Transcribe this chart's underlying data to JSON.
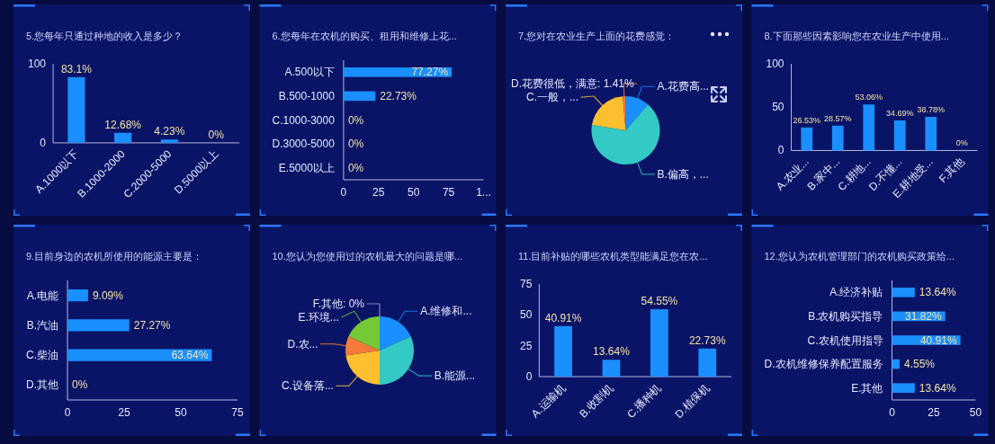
{
  "chart_data": [
    {
      "type": "bar",
      "title": "5.您每年只通过种地的收入是多少？",
      "categories": [
        "A.1000以下",
        "B.1000-2000",
        "C.2000-5000",
        "D.5000以上"
      ],
      "values": [
        83.1,
        12.68,
        4.23,
        0
      ],
      "value_labels": [
        "83.1%",
        "12.68%",
        "4.23%",
        "0%"
      ],
      "color": "#1a8fff",
      "ylim": [
        0,
        100
      ],
      "yticks": [
        0,
        100
      ]
    },
    {
      "type": "bar",
      "orientation": "horizontal",
      "title": "6.您每年在农机的购买、租用和维修上花...",
      "categories": [
        "A.500以下",
        "B.500-1000",
        "C.1000-3000",
        "D.3000-5000",
        "E.5000以上"
      ],
      "values": [
        77.27,
        22.73,
        0,
        0,
        0
      ],
      "value_labels": [
        "77.27%",
        "22.73%",
        "0%",
        "0%",
        "0%"
      ],
      "color": "#1a8fff",
      "xlim": [
        0,
        100
      ],
      "xticks": [
        0,
        25,
        50,
        75,
        {
          "value": 100,
          "label": "1..."
        }
      ]
    },
    {
      "type": "pie",
      "title": "7.您对在农业生产上面的花费感觉：",
      "categories": [
        "A.花费高...",
        "B.偏高，...",
        "C.一般，...",
        "D.花费很低，满意"
      ],
      "values": [
        11.3,
        66.2,
        21.09,
        1.41
      ],
      "value_labels": [
        null,
        null,
        null,
        "1.41%"
      ],
      "colors": [
        "#1a8fff",
        "#33c9c4",
        "#fbbf2f",
        "#f47b3a"
      ]
    },
    {
      "type": "bar",
      "title": "8.下面那些因素影响您在农业生产中使用...",
      "categories": [
        "A.农业...",
        "B.家中...",
        "C.耕地...",
        "D.不懂...",
        "E.耕地受...",
        "F.其他"
      ],
      "values": [
        26.53,
        28.57,
        53.06,
        34.69,
        38.78,
        0
      ],
      "value_labels": [
        "26.53%",
        "28.57%",
        "53.06%",
        "34.69%",
        "38.78%",
        "0%"
      ],
      "color": "#1a8fff",
      "ylim": [
        0,
        100
      ],
      "yticks": [
        0,
        50,
        100
      ]
    },
    {
      "type": "bar",
      "orientation": "horizontal",
      "title": "9.目前身边的农机所使用的能源主要是：",
      "categories": [
        "A.电能",
        "B.汽油",
        "C.柴油",
        "D.其他"
      ],
      "values": [
        9.09,
        27.27,
        63.64,
        0
      ],
      "value_labels": [
        "9.09%",
        "27.27%",
        "63.64%",
        "0%"
      ],
      "color": "#1a8fff",
      "xlim": [
        0,
        75
      ],
      "xticks": [
        0,
        25,
        50,
        75
      ]
    },
    {
      "type": "pie",
      "title": "10.您认为您使用过的农机最大的问题是哪...",
      "categories": [
        "A.维修和...",
        "B.能源...",
        "C.设备落...",
        "D.农...",
        "E.环境...",
        "F.其他"
      ],
      "values": [
        18.2,
        31.8,
        22.7,
        9.1,
        18.2,
        0
      ],
      "value_labels": [
        null,
        null,
        null,
        null,
        null,
        "0%"
      ],
      "colors": [
        "#1a8fff",
        "#33c9c4",
        "#fbbf2f",
        "#f47b3a",
        "#74c934",
        "#a9adc9"
      ]
    },
    {
      "type": "bar",
      "title": "11.目前补贴的哪些农机类型能满足您在农...",
      "categories": [
        "A.运输机",
        "B.收割机",
        "C.播种机",
        "D.植保机"
      ],
      "values": [
        40.91,
        13.64,
        54.55,
        22.73
      ],
      "value_labels": [
        "40.91%",
        "13.64%",
        "54.55%",
        "22.73%"
      ],
      "color": "#1a8fff",
      "ylim": [
        0,
        75
      ],
      "yticks": [
        0,
        25,
        50,
        75
      ]
    },
    {
      "type": "bar",
      "orientation": "horizontal",
      "title": "12.您认为农机管理部门的农机购买政策给...",
      "categories": [
        "A.经济补贴",
        "B.农机购买指导",
        "C.农机使用指导",
        "D.农机维修保养配置服务",
        "E.其他"
      ],
      "values": [
        13.64,
        31.82,
        40.91,
        4.55,
        13.64
      ],
      "value_labels": [
        "13.64%",
        "31.82%",
        "40.91%",
        "4.55%",
        "13.64%"
      ],
      "color": "#1a8fff",
      "xlim": [
        0,
        50
      ],
      "xticks": [
        0,
        25,
        50
      ]
    }
  ]
}
